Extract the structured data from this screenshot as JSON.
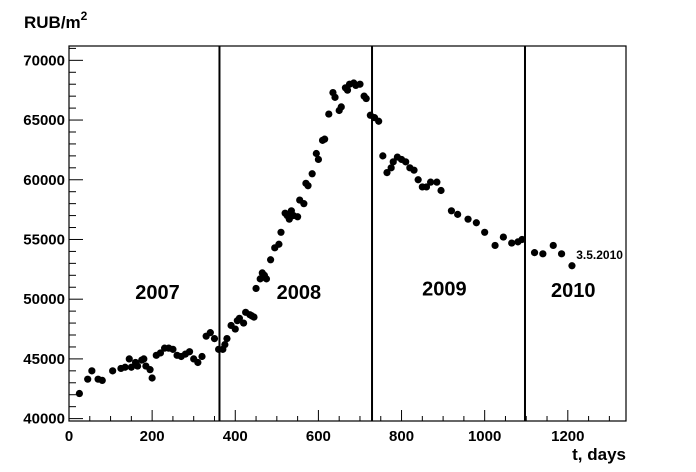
{
  "chart_data": {
    "type": "scatter",
    "title": "",
    "ylabel_base": "RUB/m",
    "ylabel_exp": "2",
    "xlabel": "t, days",
    "xlim": [
      0,
      1340
    ],
    "ylim": [
      39800,
      71200
    ],
    "x_ticks": [
      0,
      200,
      400,
      600,
      800,
      1000,
      1200
    ],
    "y_ticks": [
      40000,
      45000,
      50000,
      55000,
      60000,
      65000,
      70000
    ],
    "x_tick_labels": [
      "0",
      "200",
      "400",
      "600",
      "800",
      "1000",
      "1200"
    ],
    "y_tick_labels": [
      "40000",
      "45000",
      "50000",
      "55000",
      "60000",
      "65000",
      "70000"
    ],
    "grid": false,
    "year_boundaries": [
      362,
      729,
      1097
    ],
    "year_labels": [
      {
        "text": "2007",
        "x": 213,
        "y": 50000
      },
      {
        "text": "2008",
        "x": 553,
        "y": 50000
      },
      {
        "text": "2009",
        "x": 903,
        "y": 50300
      },
      {
        "text": "2010",
        "x": 1213,
        "y": 50200
      }
    ],
    "annotation": {
      "text": "3.5.2010",
      "x": 1213,
      "y": 53700
    },
    "points": [
      [
        25,
        42100
      ],
      [
        45,
        43300
      ],
      [
        55,
        44000
      ],
      [
        70,
        43300
      ],
      [
        80,
        43200
      ],
      [
        105,
        44000
      ],
      [
        125,
        44200
      ],
      [
        135,
        44300
      ],
      [
        145,
        45000
      ],
      [
        150,
        44300
      ],
      [
        160,
        44700
      ],
      [
        165,
        44400
      ],
      [
        175,
        44900
      ],
      [
        180,
        45000
      ],
      [
        185,
        44400
      ],
      [
        195,
        44100
      ],
      [
        200,
        43400
      ],
      [
        210,
        45300
      ],
      [
        220,
        45500
      ],
      [
        230,
        45900
      ],
      [
        240,
        45900
      ],
      [
        250,
        45800
      ],
      [
        260,
        45300
      ],
      [
        270,
        45200
      ],
      [
        280,
        45400
      ],
      [
        290,
        45600
      ],
      [
        300,
        45000
      ],
      [
        310,
        44700
      ],
      [
        320,
        45200
      ],
      [
        330,
        46900
      ],
      [
        340,
        47200
      ],
      [
        350,
        46700
      ],
      [
        360,
        45800
      ],
      [
        370,
        45800
      ],
      [
        375,
        46200
      ],
      [
        380,
        46700
      ],
      [
        390,
        47800
      ],
      [
        400,
        47500
      ],
      [
        405,
        48200
      ],
      [
        410,
        48400
      ],
      [
        420,
        48000
      ],
      [
        425,
        48900
      ],
      [
        435,
        48700
      ],
      [
        440,
        48600
      ],
      [
        445,
        48500
      ],
      [
        450,
        50900
      ],
      [
        460,
        51700
      ],
      [
        465,
        52200
      ],
      [
        470,
        52000
      ],
      [
        475,
        51700
      ],
      [
        485,
        53300
      ],
      [
        495,
        54300
      ],
      [
        505,
        54600
      ],
      [
        510,
        55600
      ],
      [
        520,
        57200
      ],
      [
        525,
        57000
      ],
      [
        530,
        56700
      ],
      [
        535,
        57400
      ],
      [
        540,
        57000
      ],
      [
        550,
        56900
      ],
      [
        555,
        58300
      ],
      [
        565,
        58000
      ],
      [
        570,
        59700
      ],
      [
        575,
        59500
      ],
      [
        585,
        60500
      ],
      [
        595,
        62200
      ],
      [
        600,
        61700
      ],
      [
        610,
        63300
      ],
      [
        615,
        63400
      ],
      [
        625,
        65500
      ],
      [
        635,
        67300
      ],
      [
        640,
        66900
      ],
      [
        650,
        65800
      ],
      [
        655,
        66100
      ],
      [
        665,
        67700
      ],
      [
        670,
        67500
      ],
      [
        675,
        68000
      ],
      [
        685,
        68100
      ],
      [
        690,
        67900
      ],
      [
        700,
        68000
      ],
      [
        710,
        67000
      ],
      [
        715,
        66800
      ],
      [
        725,
        65400
      ],
      [
        735,
        65200
      ],
      [
        745,
        64900
      ],
      [
        755,
        62000
      ],
      [
        765,
        60600
      ],
      [
        775,
        61000
      ],
      [
        780,
        61500
      ],
      [
        790,
        61900
      ],
      [
        800,
        61700
      ],
      [
        810,
        61500
      ],
      [
        820,
        61000
      ],
      [
        830,
        60800
      ],
      [
        840,
        60000
      ],
      [
        850,
        59400
      ],
      [
        860,
        59400
      ],
      [
        870,
        59800
      ],
      [
        885,
        59800
      ],
      [
        895,
        59100
      ],
      [
        920,
        57400
      ],
      [
        935,
        57100
      ],
      [
        960,
        56700
      ],
      [
        980,
        56400
      ],
      [
        1000,
        55600
      ],
      [
        1025,
        54500
      ],
      [
        1045,
        55200
      ],
      [
        1065,
        54700
      ],
      [
        1080,
        54800
      ],
      [
        1090,
        55000
      ],
      [
        1120,
        53900
      ],
      [
        1140,
        53800
      ],
      [
        1165,
        54500
      ],
      [
        1185,
        53800
      ],
      [
        1210,
        52800
      ]
    ]
  }
}
